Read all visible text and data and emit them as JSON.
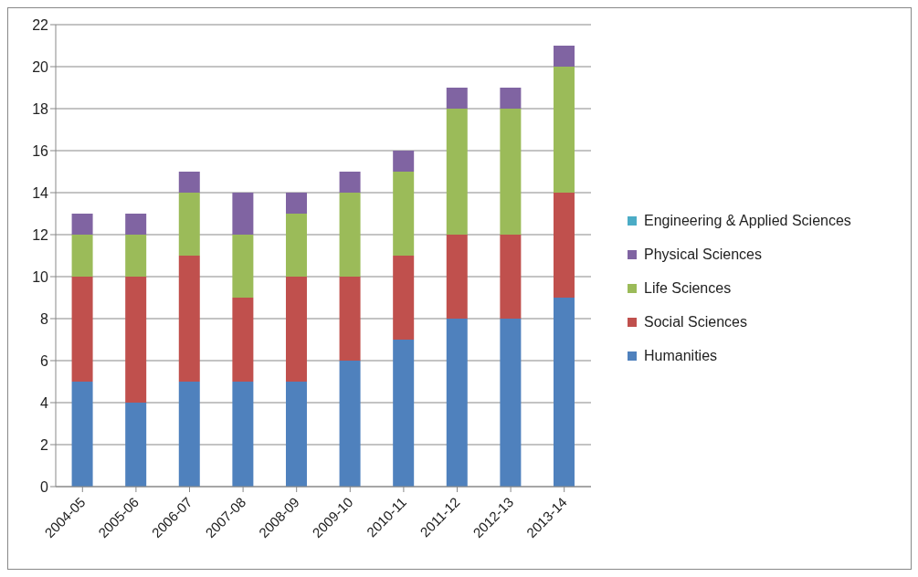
{
  "chart_data": {
    "type": "bar",
    "stacked": true,
    "categories": [
      "2004-05",
      "2005-06",
      "2006-07",
      "2007-08",
      "2008-09",
      "2009-10",
      "2010-11",
      "2011-12",
      "2012-13",
      "2013-14"
    ],
    "series": [
      {
        "name": "Humanities",
        "color": "#4f81bd",
        "values": [
          5,
          4,
          5,
          5,
          5,
          6,
          7,
          8,
          8,
          9
        ]
      },
      {
        "name": "Social Sciences",
        "color": "#c0504d",
        "values": [
          5,
          6,
          6,
          4,
          5,
          4,
          4,
          4,
          4,
          5
        ]
      },
      {
        "name": "Life Sciences",
        "color": "#9bbb59",
        "values": [
          2,
          2,
          3,
          3,
          3,
          4,
          4,
          6,
          6,
          6
        ]
      },
      {
        "name": "Physical Sciences",
        "color": "#8064a2",
        "values": [
          1,
          1,
          1,
          2,
          1,
          1,
          1,
          1,
          1,
          1
        ]
      },
      {
        "name": "Engineering & Applied Sciences",
        "color": "#4bacc6",
        "values": [
          0,
          0,
          0,
          0,
          0,
          0,
          0,
          0,
          0,
          0
        ]
      }
    ],
    "ylim": [
      0,
      22
    ],
    "yticks": [
      0,
      2,
      4,
      6,
      8,
      10,
      12,
      14,
      16,
      18,
      20,
      22
    ],
    "grid": "y",
    "legend": "right"
  }
}
